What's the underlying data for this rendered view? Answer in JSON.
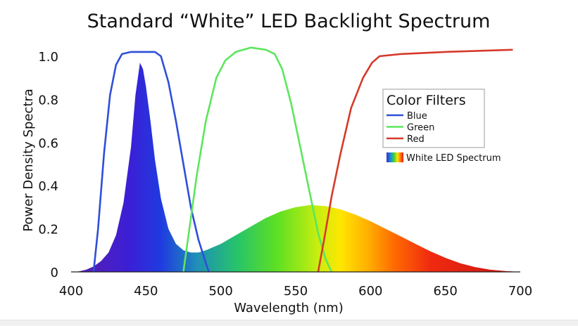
{
  "chart_data": {
    "type": "area",
    "title": "Standard “White” LED Backlight Spectrum",
    "xlabel": "Wavelength (nm)",
    "ylabel": "Power Density Spectra",
    "xlim": [
      400,
      700
    ],
    "ylim": [
      0,
      1.0
    ],
    "x_ticks": [
      400,
      450,
      500,
      550,
      600,
      650,
      700
    ],
    "x_tick_labels": [
      "400",
      "450",
      "500",
      "550",
      "600",
      "650",
      "700"
    ],
    "y_ticks": [
      0,
      0.2,
      0.4,
      0.6,
      0.8,
      1.0
    ],
    "y_tick_labels": [
      "0",
      "0.2",
      "0.4",
      "0.6",
      "0.8",
      "1.0"
    ],
    "legend": {
      "title": "Color Filters",
      "position": "right",
      "entries": [
        {
          "label": "Blue",
          "color": "#2f4fd8"
        },
        {
          "label": "Green",
          "color": "#5ce65c"
        },
        {
          "label": "Red",
          "color": "#d63a2a"
        }
      ],
      "spectrum_label": "White LED Spectrum"
    },
    "series": [
      {
        "name": "White LED Spectrum",
        "kind": "filled-spectrum",
        "points": [
          [
            400,
            0
          ],
          [
            405,
            0.002
          ],
          [
            410,
            0.01
          ],
          [
            415,
            0.025
          ],
          [
            420,
            0.05
          ],
          [
            425,
            0.09
          ],
          [
            430,
            0.17
          ],
          [
            435,
            0.32
          ],
          [
            440,
            0.58
          ],
          [
            443,
            0.82
          ],
          [
            446,
            0.97
          ],
          [
            448,
            0.94
          ],
          [
            450,
            0.86
          ],
          [
            453,
            0.7
          ],
          [
            456,
            0.52
          ],
          [
            460,
            0.34
          ],
          [
            465,
            0.2
          ],
          [
            470,
            0.13
          ],
          [
            475,
            0.1
          ],
          [
            480,
            0.09
          ],
          [
            485,
            0.09
          ],
          [
            490,
            0.1
          ],
          [
            500,
            0.13
          ],
          [
            510,
            0.17
          ],
          [
            520,
            0.21
          ],
          [
            530,
            0.25
          ],
          [
            540,
            0.28
          ],
          [
            550,
            0.3
          ],
          [
            560,
            0.31
          ],
          [
            570,
            0.305
          ],
          [
            580,
            0.29
          ],
          [
            590,
            0.265
          ],
          [
            600,
            0.235
          ],
          [
            610,
            0.2
          ],
          [
            620,
            0.165
          ],
          [
            630,
            0.13
          ],
          [
            640,
            0.095
          ],
          [
            650,
            0.065
          ],
          [
            660,
            0.04
          ],
          [
            670,
            0.022
          ],
          [
            680,
            0.01
          ],
          [
            690,
            0.004
          ],
          [
            700,
            0
          ]
        ]
      },
      {
        "name": "Blue",
        "kind": "line",
        "color": "#2f4fd8",
        "points": [
          [
            415,
            0
          ],
          [
            418,
            0.2
          ],
          [
            422,
            0.55
          ],
          [
            426,
            0.82
          ],
          [
            430,
            0.96
          ],
          [
            434,
            1.01
          ],
          [
            440,
            1.02
          ],
          [
            450,
            1.02
          ],
          [
            456,
            1.02
          ],
          [
            460,
            1.0
          ],
          [
            465,
            0.88
          ],
          [
            470,
            0.7
          ],
          [
            475,
            0.5
          ],
          [
            480,
            0.3
          ],
          [
            485,
            0.15
          ],
          [
            490,
            0.04
          ],
          [
            492,
            0
          ]
        ]
      },
      {
        "name": "Green",
        "kind": "line",
        "color": "#5ce65c",
        "points": [
          [
            475,
            0
          ],
          [
            479,
            0.2
          ],
          [
            484,
            0.45
          ],
          [
            490,
            0.7
          ],
          [
            497,
            0.9
          ],
          [
            503,
            0.98
          ],
          [
            510,
            1.02
          ],
          [
            520,
            1.04
          ],
          [
            530,
            1.03
          ],
          [
            536,
            1.01
          ],
          [
            541,
            0.94
          ],
          [
            547,
            0.78
          ],
          [
            553,
            0.58
          ],
          [
            559,
            0.38
          ],
          [
            565,
            0.18
          ],
          [
            570,
            0.06
          ],
          [
            574,
            0
          ]
        ]
      },
      {
        "name": "Red",
        "kind": "line",
        "color": "#d63a2a",
        "points": [
          [
            565,
            0
          ],
          [
            569,
            0.15
          ],
          [
            574,
            0.35
          ],
          [
            580,
            0.55
          ],
          [
            587,
            0.76
          ],
          [
            595,
            0.9
          ],
          [
            601,
            0.97
          ],
          [
            606,
            1.0
          ],
          [
            620,
            1.01
          ],
          [
            650,
            1.02
          ],
          [
            695,
            1.03
          ]
        ]
      }
    ]
  }
}
